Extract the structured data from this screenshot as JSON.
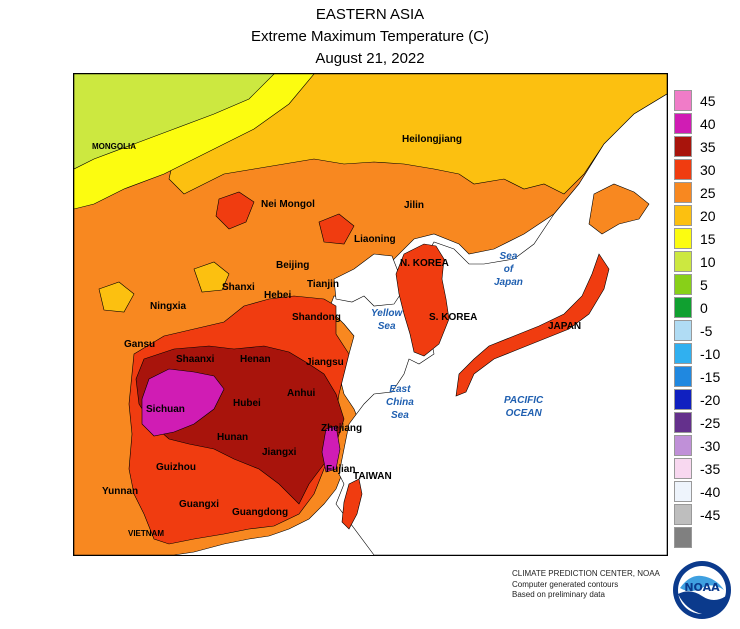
{
  "titles": {
    "region": "EASTERN ASIA",
    "product": "Extreme Maximum Temperature (C)",
    "date": "August 21, 2022"
  },
  "map_labels": {
    "mongolia": "MONGOLIA",
    "heilongjiang": "Heilongjiang",
    "nei_mongol": "Nei Mongol",
    "jilin": "Jilin",
    "liaoning": "Liaoning",
    "n_korea": "N. KOREA",
    "beijing": "Beijing",
    "tianjin": "Tianjin",
    "shanxi": "Shanxi",
    "hebei": "Hebei",
    "ningxia": "Ningxia",
    "shandong": "Shandong",
    "s_korea": "S. KOREA",
    "japan": "JAPAN",
    "gansu": "Gansu",
    "shaanxi": "Shaanxi",
    "henan": "Henan",
    "jiangsu": "Jiangsu",
    "anhui": "Anhui",
    "hubei": "Hubei",
    "sichuan": "Sichuan",
    "hunan": "Hunan",
    "zhejiang": "Zhejiang",
    "jiangxi": "Jiangxi",
    "guizhou": "Guizhou",
    "fujian": "Fujian",
    "taiwan": "TAIWAN",
    "yunnan": "Yunnan",
    "guangxi": "Guangxi",
    "guangdong": "Guangdong",
    "vietnam": "VIETNAM"
  },
  "seas": {
    "sea_of_japan": [
      "Sea",
      "of",
      "Japan"
    ],
    "yellow_sea": [
      "Yellow",
      "Sea"
    ],
    "east_china_sea": [
      "East",
      "China",
      "Sea"
    ],
    "pacific_ocean": [
      "PACIFIC",
      "OCEAN"
    ]
  },
  "legend": [
    {
      "label": "45",
      "color": "#f07cc8"
    },
    {
      "label": "40",
      "color": "#d01cb4"
    },
    {
      "label": "35",
      "color": "#a8140c"
    },
    {
      "label": "30",
      "color": "#f03c10"
    },
    {
      "label": "25",
      "color": "#f88820"
    },
    {
      "label": "20",
      "color": "#fcc010"
    },
    {
      "label": "15",
      "color": "#fcfc10"
    },
    {
      "label": "10",
      "color": "#cce840"
    },
    {
      "label": "5",
      "color": "#88d018"
    },
    {
      "label": "0",
      "color": "#10a030"
    },
    {
      "label": "-5",
      "color": "#b0dcf4"
    },
    {
      "label": "-10",
      "color": "#30b0f0"
    },
    {
      "label": "-15",
      "color": "#2088e0"
    },
    {
      "label": "-20",
      "color": "#1020c0"
    },
    {
      "label": "-25",
      "color": "#64308c"
    },
    {
      "label": "-30",
      "color": "#c090d8"
    },
    {
      "label": "-35",
      "color": "#f8d8f0"
    },
    {
      "label": "-40",
      "color": "#eef4fc"
    },
    {
      "label": "-45",
      "color": "#bebebe"
    },
    {
      "label": "",
      "color": "#808080"
    }
  ],
  "credits": {
    "line1": "CLIMATE PREDICTION CENTER, NOAA",
    "line2": "Computer generated contours",
    "line3": "Based on preliminary data"
  },
  "logo": {
    "text": "NOAA"
  }
}
